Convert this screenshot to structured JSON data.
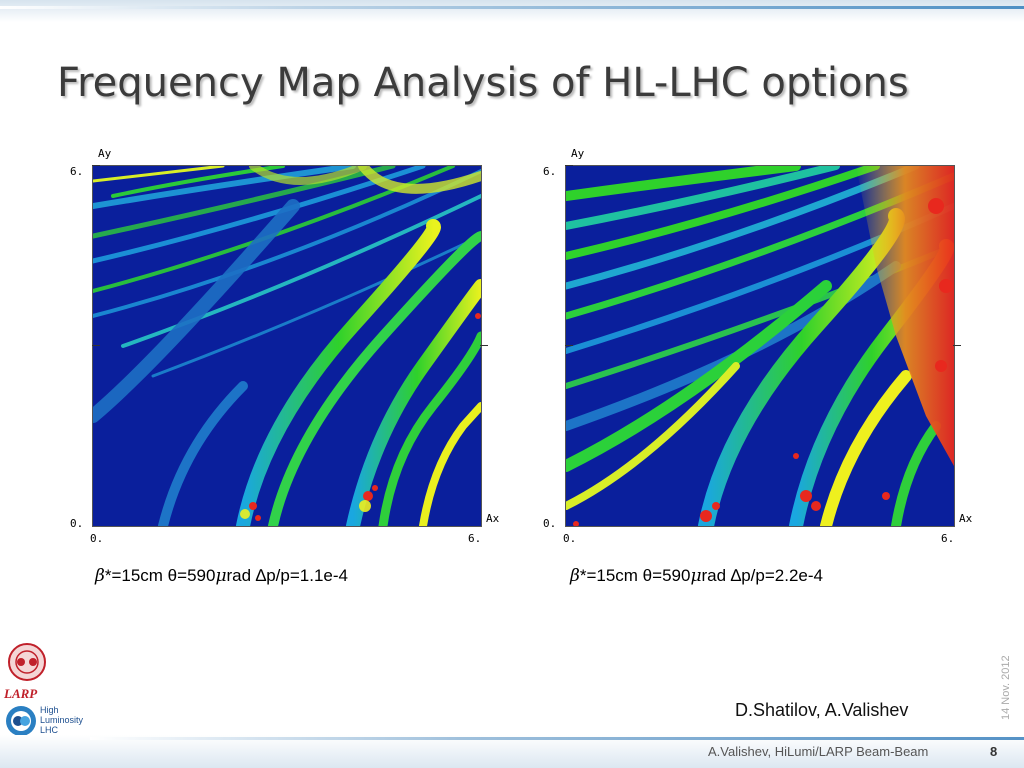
{
  "slide": {
    "title": "Frequency Map Analysis of HL-LHC options",
    "authors": "D.Shatilov, A.Valishev",
    "date": "14 Nov. 2012",
    "footer": "A.Valishev, HiLumi/LARP Beam-Beam",
    "page_number": "8"
  },
  "logos": {
    "larp_label": "LARP",
    "hilumi_line1": "High",
    "hilumi_line2": "Luminosity",
    "hilumi_line3": "LHC"
  },
  "plots": [
    {
      "y_axis_label": "Ay",
      "x_axis_label": "Ax",
      "y_max_label": "6.",
      "y_min_label": "0.",
      "x_min_label": "0.",
      "x_max_label": "6.",
      "caption": {
        "beta": "β",
        "text1": "*=15cm ",
        "theta": "θ",
        "text2": "=590",
        "mu": "μ",
        "text3": "rad ",
        "delta": "∆",
        "text4": "p/p=1.1e-4"
      }
    },
    {
      "y_axis_label": "Ay",
      "x_axis_label": "Ax",
      "y_max_label": "6.",
      "y_min_label": "0.",
      "x_min_label": "0.",
      "x_max_label": "6.",
      "caption": {
        "beta": "β",
        "text1": "*=15cm ",
        "theta": "θ",
        "text2": "=590",
        "mu": "μ",
        "text3": "rad ",
        "delta": "∆",
        "text4": "p/p=2.2e-4"
      }
    }
  ],
  "colors": {
    "map_background": "#0a1f9c",
    "resonance_green": "#27c42a",
    "resonance_yellow": "#eef01e",
    "chaotic_red": "#e8281e",
    "title_text": "#3b3b3b",
    "accent_blue": "#4d8fc4"
  }
}
